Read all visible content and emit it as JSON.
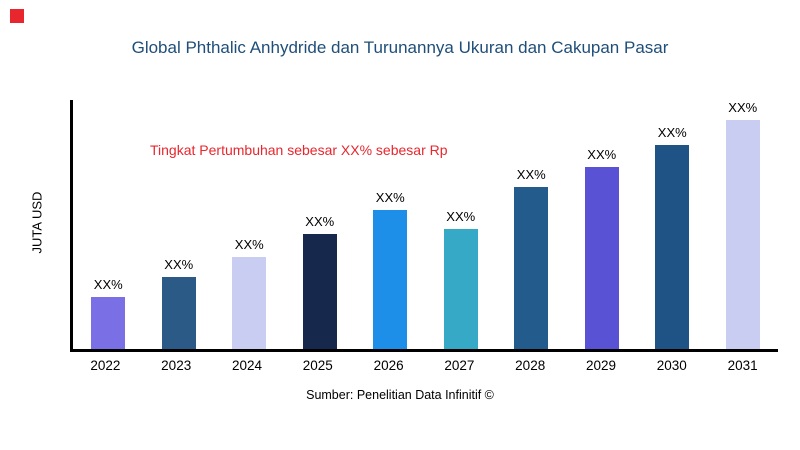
{
  "title": "Global Phthalic Anhydride dan Turunannya Ukuran dan Cakupan Pasar",
  "annotation": "Tingkat Pertumbuhan sebesar XX% sebesar Rp",
  "ylabel": "JUTA USD",
  "source": "Sumber: Penelitian Data Infinitif ©",
  "colors": {
    "title": "#1f4e79",
    "accent_red": "#e8262d",
    "axis": "#000000",
    "background": "#ffffff"
  },
  "chart_data": {
    "type": "bar",
    "title": "Global Phthalic Anhydride dan Turunannya Ukuran dan Cakupan Pasar",
    "xlabel": "",
    "ylabel": "JUTA USD",
    "categories": [
      "2022",
      "2023",
      "2024",
      "2025",
      "2026",
      "2027",
      "2028",
      "2029",
      "2030",
      "2031"
    ],
    "values": [
      21,
      29,
      37,
      46,
      56,
      48,
      65,
      73,
      82,
      92
    ],
    "bar_labels": [
      "XX%",
      "XX%",
      "XX%",
      "XX%",
      "XX%",
      "XX%",
      "XX%",
      "XX%",
      "XX%",
      "XX%"
    ],
    "bar_colors": [
      "#7b6fe6",
      "#2b5a87",
      "#c9cdf1",
      "#16294d",
      "#1d8fe8",
      "#35a9c6",
      "#235c8c",
      "#5a52d5",
      "#1f5386",
      "#c9cdf1"
    ],
    "ylim": [
      0,
      100
    ],
    "grid": false,
    "legend": false,
    "annotation": "Tingkat Pertumbuhan sebesar XX% sebesar Rp"
  }
}
